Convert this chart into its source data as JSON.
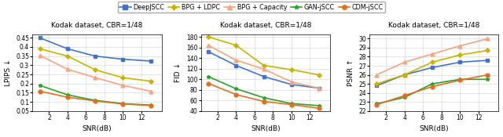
{
  "snr": [
    1,
    4,
    7,
    10,
    13
  ],
  "title": "Kodak dataset, CBR=1/48",
  "xlabel": "SNR(dB)",
  "lpips": {
    "DeepJSCC": [
      0.45,
      0.39,
      0.35,
      0.333,
      0.323
    ],
    "BPG + LDPC": [
      0.39,
      0.35,
      0.275,
      0.232,
      0.213
    ],
    "BPG + Capacity": [
      0.354,
      0.278,
      0.232,
      0.19,
      0.158
    ],
    "GAN-jSCC": [
      0.19,
      0.138,
      0.108,
      0.09,
      0.082
    ],
    "CDM-jSCC": [
      0.158,
      0.125,
      0.105,
      0.088,
      0.08
    ]
  },
  "lpips_ylabel": "LPIPS ↓",
  "lpips_ylim": [
    0.05,
    0.47
  ],
  "lpips_yticks": [
    0.05,
    0.1,
    0.15,
    0.2,
    0.25,
    0.3,
    0.35,
    0.4,
    0.45
  ],
  "fid": {
    "DeepJSCC": [
      152,
      126,
      105,
      90,
      83
    ],
    "BPG + LDPC": [
      180,
      164,
      126,
      118,
      108
    ],
    "BPG + Capacity": [
      164,
      136,
      119,
      95,
      83
    ],
    "GAN-jSCC": [
      105,
      82,
      65,
      54,
      50
    ],
    "CDM-jSCC": [
      92,
      71,
      58,
      52,
      45
    ]
  },
  "fid_ylabel": "FID ↓",
  "fid_ylim": [
    40,
    185
  ],
  "fid_yticks": [
    40,
    60,
    80,
    100,
    120,
    140,
    160,
    180
  ],
  "psnr": {
    "DeepJSCC": [
      24.8,
      26.0,
      26.8,
      27.4,
      27.6
    ],
    "BPG + LDPC": [
      25.0,
      26.0,
      27.4,
      28.2,
      28.7
    ],
    "BPG + Capacity": [
      26.0,
      27.4,
      28.3,
      29.2,
      30.0
    ],
    "GAN-jSCC": [
      22.8,
      23.5,
      25.0,
      25.5,
      25.5
    ],
    "CDM-jSCC": [
      22.7,
      23.7,
      24.7,
      25.4,
      26.0
    ]
  },
  "psnr_ylabel": "PSNR ↑",
  "psnr_ylim": [
    22,
    30.5
  ],
  "psnr_yticks": [
    22,
    23,
    24,
    25,
    26,
    27,
    28,
    29,
    30
  ],
  "colors": {
    "DeepJSCC": "#4472c4",
    "BPG + LDPC": "#c8b400",
    "BPG + Capacity": "#f4a582",
    "GAN-jSCC": "#2ca02c",
    "CDM-jSCC": "#e07020"
  },
  "markers": {
    "DeepJSCC": "s",
    "BPG + LDPC": "P",
    "BPG + Capacity": "^",
    "GAN-jSCC": "*",
    "CDM-jSCC": "o"
  },
  "legend_order": [
    "DeepJSCC",
    "BPG + LDPC",
    "BPG + Capacity",
    "GAN-jSCC",
    "CDM-jSCC"
  ],
  "xticks": [
    2,
    4,
    6,
    8,
    10,
    12
  ]
}
